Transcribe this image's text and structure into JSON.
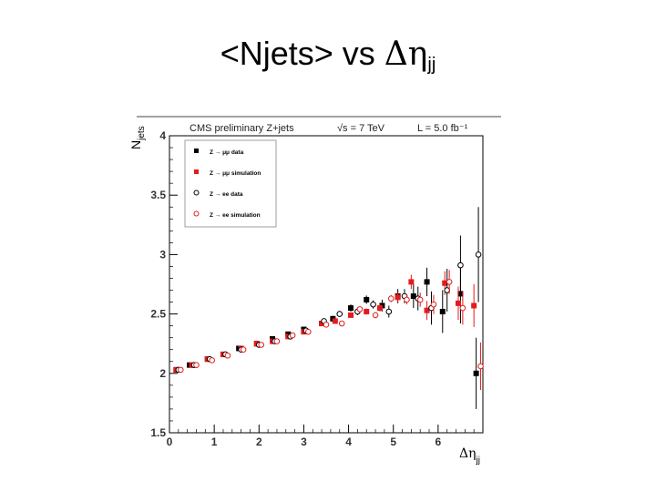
{
  "slide_title": {
    "prefix": "<Njets> vs ",
    "greek": "Δη",
    "subscript": "jj"
  },
  "chart_data": {
    "type": "scatter",
    "header": {
      "experiment": "CMS preliminary Z+jets",
      "energy": "√s = 7 TeV",
      "lumi": "L = 5.0 fb⁻¹"
    },
    "xlabel": "Δη",
    "xlabel_sub": "jj",
    "ylabel": "N",
    "ylabel_sub": "jets",
    "xlim": [
      0,
      7
    ],
    "ylim": [
      1.5,
      4
    ],
    "xticks": [
      0,
      1,
      2,
      3,
      4,
      5,
      6
    ],
    "yticks": [
      1.5,
      2,
      2.5,
      3,
      3.5,
      4
    ],
    "ytick_labels": [
      "1.5",
      "2",
      "2.5",
      "3",
      "3.5",
      "4"
    ],
    "grid": false,
    "legend_position": "top-left",
    "series": [
      {
        "name": "Z → μμ data",
        "color": "#000000",
        "marker": "filled-square",
        "points": [
          [
            0.15,
            2.03,
            0.01
          ],
          [
            0.45,
            2.07,
            0.01
          ],
          [
            0.85,
            2.12,
            0.01
          ],
          [
            1.2,
            2.16,
            0.01
          ],
          [
            1.55,
            2.21,
            0.01
          ],
          [
            1.95,
            2.25,
            0.01
          ],
          [
            2.3,
            2.29,
            0.015
          ],
          [
            2.65,
            2.33,
            0.015
          ],
          [
            3.0,
            2.37,
            0.02
          ],
          [
            3.4,
            2.42,
            0.02
          ],
          [
            3.65,
            2.46,
            0.025
          ],
          [
            4.05,
            2.55,
            0.03
          ],
          [
            4.4,
            2.62,
            0.035
          ],
          [
            4.75,
            2.57,
            0.05
          ],
          [
            5.1,
            2.65,
            0.06
          ],
          [
            5.45,
            2.65,
            0.1
          ],
          [
            5.75,
            2.77,
            0.12
          ],
          [
            6.1,
            2.52,
            0.18
          ],
          [
            6.5,
            2.67,
            0.25
          ],
          [
            6.85,
            2.0,
            0.3
          ]
        ]
      },
      {
        "name": "Z → μμ simulation",
        "color": "#e41a1c",
        "marker": "filled-square",
        "points": [
          [
            0.15,
            2.03,
            0.005
          ],
          [
            0.5,
            2.07,
            0.005
          ],
          [
            0.85,
            2.12,
            0.005
          ],
          [
            1.2,
            2.16,
            0.005
          ],
          [
            1.6,
            2.21,
            0.005
          ],
          [
            1.95,
            2.25,
            0.005
          ],
          [
            2.3,
            2.27,
            0.01
          ],
          [
            2.65,
            2.31,
            0.01
          ],
          [
            3.0,
            2.35,
            0.01
          ],
          [
            3.4,
            2.42,
            0.015
          ],
          [
            3.7,
            2.44,
            0.015
          ],
          [
            4.05,
            2.49,
            0.02
          ],
          [
            4.4,
            2.52,
            0.025
          ],
          [
            4.7,
            2.55,
            0.03
          ],
          [
            5.1,
            2.64,
            0.04
          ],
          [
            5.4,
            2.77,
            0.06
          ],
          [
            5.75,
            2.53,
            0.08
          ],
          [
            6.15,
            2.76,
            0.1
          ],
          [
            6.45,
            2.59,
            0.14
          ],
          [
            6.8,
            2.57,
            0.18
          ]
        ]
      },
      {
        "name": "Z → ee data",
        "color": "#000000",
        "marker": "open-circle",
        "points": [
          [
            0.2,
            2.03,
            0.01
          ],
          [
            0.55,
            2.07,
            0.01
          ],
          [
            0.9,
            2.12,
            0.01
          ],
          [
            1.25,
            2.16,
            0.01
          ],
          [
            1.6,
            2.2,
            0.01
          ],
          [
            2.0,
            2.24,
            0.012
          ],
          [
            2.35,
            2.27,
            0.015
          ],
          [
            2.7,
            2.31,
            0.015
          ],
          [
            3.05,
            2.36,
            0.02
          ],
          [
            3.45,
            2.44,
            0.02
          ],
          [
            3.8,
            2.5,
            0.025
          ],
          [
            4.2,
            2.52,
            0.03
          ],
          [
            4.55,
            2.58,
            0.035
          ],
          [
            4.9,
            2.52,
            0.05
          ],
          [
            5.25,
            2.65,
            0.06
          ],
          [
            5.55,
            2.63,
            0.1
          ],
          [
            5.85,
            2.55,
            0.14
          ],
          [
            6.2,
            2.7,
            0.18
          ],
          [
            6.5,
            2.91,
            0.25
          ],
          [
            6.9,
            3.0,
            0.4
          ]
        ]
      },
      {
        "name": "Z → ee simulation",
        "color": "#e41a1c",
        "marker": "open-circle",
        "points": [
          [
            0.25,
            2.03,
            0.005
          ],
          [
            0.6,
            2.07,
            0.005
          ],
          [
            0.95,
            2.11,
            0.005
          ],
          [
            1.3,
            2.15,
            0.005
          ],
          [
            1.65,
            2.2,
            0.005
          ],
          [
            2.05,
            2.24,
            0.005
          ],
          [
            2.4,
            2.27,
            0.01
          ],
          [
            2.75,
            2.32,
            0.01
          ],
          [
            3.1,
            2.35,
            0.01
          ],
          [
            3.5,
            2.41,
            0.015
          ],
          [
            3.85,
            2.42,
            0.015
          ],
          [
            4.25,
            2.54,
            0.02
          ],
          [
            4.6,
            2.49,
            0.025
          ],
          [
            4.95,
            2.63,
            0.03
          ],
          [
            5.3,
            2.62,
            0.04
          ],
          [
            5.6,
            2.62,
            0.06
          ],
          [
            5.9,
            2.58,
            0.08
          ],
          [
            6.25,
            2.77,
            0.1
          ],
          [
            6.55,
            2.55,
            0.14
          ],
          [
            6.95,
            2.06,
            0.2
          ]
        ]
      }
    ]
  }
}
